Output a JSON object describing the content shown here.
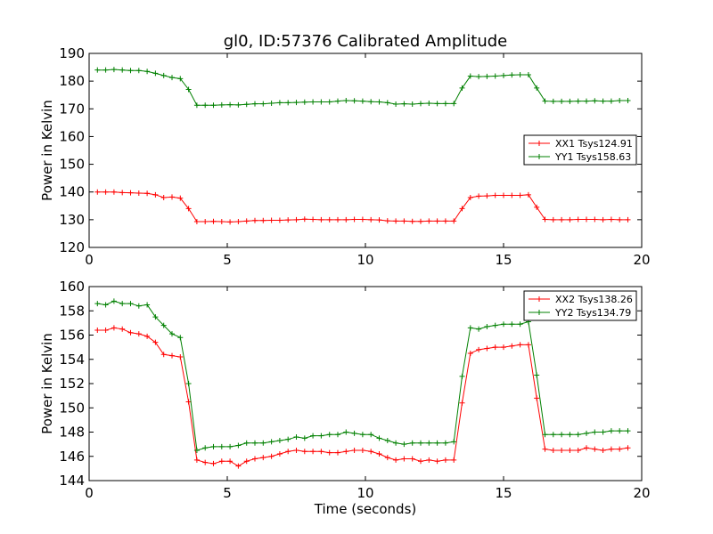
{
  "chart_data": [
    {
      "type": "line",
      "title": "gl0, ID:57376 Calibrated Amplitude",
      "xlabel": "",
      "ylabel": "Power in Kelvin",
      "xlim": [
        0,
        20
      ],
      "ylim": [
        120,
        190
      ],
      "xticks": [
        "0",
        "5",
        "10",
        "15",
        "20"
      ],
      "yticks": [
        "120",
        "130",
        "140",
        "150",
        "160",
        "170",
        "180",
        "190"
      ],
      "grid": false,
      "legend_position": "center-right",
      "x": [
        0.3,
        0.6,
        0.9,
        1.2,
        1.5,
        1.8,
        2.1,
        2.4,
        2.7,
        3.0,
        3.3,
        3.6,
        3.9,
        4.2,
        4.5,
        4.8,
        5.1,
        5.4,
        5.7,
        6.0,
        6.3,
        6.6,
        6.9,
        7.2,
        7.5,
        7.8,
        8.1,
        8.4,
        8.7,
        9.0,
        9.3,
        9.6,
        9.9,
        10.2,
        10.5,
        10.8,
        11.1,
        11.4,
        11.7,
        12.0,
        12.3,
        12.6,
        12.9,
        13.2,
        13.5,
        13.8,
        14.1,
        14.4,
        14.7,
        15.0,
        15.3,
        15.6,
        15.9,
        16.2,
        16.5,
        16.8,
        17.1,
        17.4,
        17.7,
        18.0,
        18.3,
        18.6,
        18.9,
        19.2,
        19.5
      ],
      "series": [
        {
          "name": "XX1 Tsys124.91",
          "color": "#ff0000",
          "values": [
            140.0,
            140.0,
            140.0,
            139.8,
            139.7,
            139.6,
            139.5,
            139.0,
            138.0,
            138.2,
            137.8,
            134.0,
            129.3,
            129.3,
            129.4,
            129.3,
            129.2,
            129.3,
            129.5,
            129.7,
            129.7,
            129.8,
            129.8,
            129.9,
            130.0,
            130.2,
            130.1,
            130.0,
            130.0,
            130.0,
            130.0,
            130.1,
            130.1,
            130.0,
            129.9,
            129.6,
            129.5,
            129.5,
            129.4,
            129.4,
            129.5,
            129.5,
            129.5,
            129.5,
            134.0,
            138.0,
            138.5,
            138.6,
            138.8,
            138.8,
            138.8,
            138.8,
            139.0,
            134.5,
            130.1,
            130.0,
            130.0,
            130.0,
            130.1,
            130.1,
            130.1,
            130.0,
            130.1,
            130.0,
            130.0
          ]
        },
        {
          "name": "YY1 Tsys158.63",
          "color": "#008000",
          "values": [
            184.0,
            184.0,
            184.2,
            184.0,
            183.8,
            183.8,
            183.5,
            182.8,
            182.0,
            181.3,
            180.9,
            177.0,
            171.3,
            171.3,
            171.3,
            171.4,
            171.5,
            171.4,
            171.6,
            171.8,
            171.8,
            172.0,
            172.2,
            172.2,
            172.3,
            172.4,
            172.5,
            172.5,
            172.5,
            172.8,
            173.0,
            172.9,
            172.8,
            172.6,
            172.5,
            172.2,
            171.7,
            171.8,
            171.7,
            171.9,
            172.0,
            171.9,
            171.9,
            171.9,
            177.5,
            181.8,
            181.6,
            181.7,
            181.8,
            182.0,
            182.2,
            182.3,
            182.3,
            177.5,
            172.8,
            172.7,
            172.7,
            172.7,
            172.8,
            172.8,
            172.9,
            172.8,
            172.8,
            173.0,
            173.0
          ]
        }
      ]
    },
    {
      "type": "line",
      "title": "",
      "xlabel": "Time (seconds)",
      "ylabel": "Power in Kelvin",
      "xlim": [
        0,
        20
      ],
      "ylim": [
        144,
        160
      ],
      "xticks": [
        "0",
        "5",
        "10",
        "15",
        "20"
      ],
      "yticks": [
        "144",
        "146",
        "148",
        "150",
        "152",
        "154",
        "156",
        "158",
        "160"
      ],
      "grid": false,
      "legend_position": "top-right",
      "x": [
        0.3,
        0.6,
        0.9,
        1.2,
        1.5,
        1.8,
        2.1,
        2.4,
        2.7,
        3.0,
        3.3,
        3.6,
        3.9,
        4.2,
        4.5,
        4.8,
        5.1,
        5.4,
        5.7,
        6.0,
        6.3,
        6.6,
        6.9,
        7.2,
        7.5,
        7.8,
        8.1,
        8.4,
        8.7,
        9.0,
        9.3,
        9.6,
        9.9,
        10.2,
        10.5,
        10.8,
        11.1,
        11.4,
        11.7,
        12.0,
        12.3,
        12.6,
        12.9,
        13.2,
        13.5,
        13.8,
        14.1,
        14.4,
        14.7,
        15.0,
        15.3,
        15.6,
        15.9,
        16.2,
        16.5,
        16.8,
        17.1,
        17.4,
        17.7,
        18.0,
        18.3,
        18.6,
        18.9,
        19.2,
        19.5
      ],
      "series": [
        {
          "name": "XX2 Tsys138.26",
          "color": "#ff0000",
          "values": [
            156.4,
            156.4,
            156.6,
            156.5,
            156.2,
            156.1,
            155.9,
            155.4,
            154.4,
            154.3,
            154.2,
            150.5,
            145.7,
            145.5,
            145.4,
            145.6,
            145.6,
            145.2,
            145.6,
            145.8,
            145.9,
            146.0,
            146.2,
            146.4,
            146.5,
            146.4,
            146.4,
            146.4,
            146.3,
            146.3,
            146.4,
            146.5,
            146.5,
            146.4,
            146.2,
            145.9,
            145.7,
            145.8,
            145.8,
            145.6,
            145.7,
            145.6,
            145.7,
            145.7,
            150.4,
            154.5,
            154.8,
            154.9,
            155.0,
            155.0,
            155.1,
            155.2,
            155.2,
            150.8,
            146.6,
            146.5,
            146.5,
            146.5,
            146.5,
            146.7,
            146.6,
            146.5,
            146.6,
            146.6,
            146.7
          ]
        },
        {
          "name": "YY2 Tsys134.79",
          "color": "#008000",
          "values": [
            158.6,
            158.5,
            158.8,
            158.6,
            158.6,
            158.4,
            158.5,
            157.5,
            156.8,
            156.1,
            155.8,
            152.0,
            146.5,
            146.7,
            146.8,
            146.8,
            146.8,
            146.9,
            147.1,
            147.1,
            147.1,
            147.2,
            147.3,
            147.4,
            147.6,
            147.5,
            147.7,
            147.7,
            147.8,
            147.8,
            148.0,
            147.9,
            147.8,
            147.8,
            147.5,
            147.3,
            147.1,
            147.0,
            147.1,
            147.1,
            147.1,
            147.1,
            147.1,
            147.2,
            152.6,
            156.6,
            156.5,
            156.7,
            156.8,
            156.9,
            156.9,
            156.9,
            157.1,
            152.7,
            147.8,
            147.8,
            147.8,
            147.8,
            147.8,
            147.9,
            148.0,
            148.0,
            148.1,
            148.1,
            148.1
          ]
        }
      ]
    }
  ]
}
